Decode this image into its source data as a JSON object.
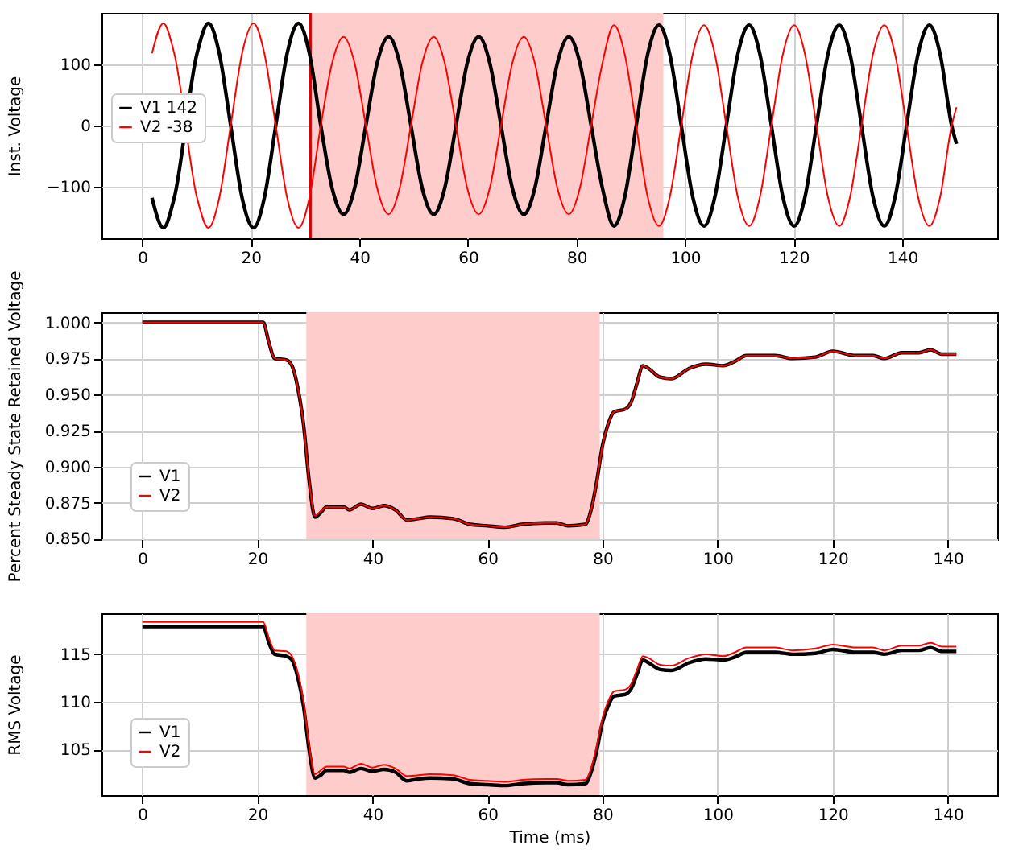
{
  "chart_data": [
    {
      "type": "line",
      "ylabel": "Inst. Voltage",
      "xlim": [
        -7.5,
        157.5
      ],
      "ylim": [
        -184,
        184
      ],
      "xticks": [
        0,
        20,
        40,
        60,
        80,
        100,
        120,
        140
      ],
      "yticks": [
        -100,
        0,
        100
      ],
      "grid": true,
      "legend": "left",
      "x": [
        1.8,
        3.9,
        5.9,
        10.1,
        12.2,
        14.2,
        16.3,
        18.4,
        20.5,
        22.5,
        24.6,
        26.7,
        28.8,
        30.8,
        32.9,
        35.0,
        37.1,
        39.1,
        41.2,
        43.3,
        45.4,
        47.4,
        49.5,
        51.6,
        53.7,
        55.7,
        57.8,
        59.9,
        62.0,
        64.0,
        66.1,
        68.2,
        70.3,
        72.3,
        74.4,
        76.5,
        78.6,
        80.6,
        82.7,
        84.8,
        86.9,
        88.9,
        91.0,
        93.1,
        95.2,
        97.2,
        99.3,
        101.4,
        103.5,
        105.5,
        107.6,
        109.7,
        111.8,
        113.8,
        115.9,
        118.0,
        120.1,
        122.1,
        124.2,
        126.3,
        128.4,
        130.4,
        132.5,
        134.6,
        136.7,
        138.7,
        140.8,
        142.9,
        145.0,
        147.0,
        149.1,
        150
      ],
      "series": [
        {
          "name": "V1 142",
          "color": "#000000",
          "values": [
            -118,
            -167,
            -118,
            118,
            167,
            118,
            0,
            -118,
            -167,
            -118,
            0,
            118,
            167,
            118,
            0,
            -103,
            -145,
            -103,
            0,
            103,
            145,
            103,
            0,
            -103,
            -145,
            -103,
            0,
            103,
            145,
            103,
            0,
            -103,
            -145,
            -103,
            0,
            103,
            145,
            103,
            0,
            -103,
            -164,
            -116,
            0,
            116,
            164,
            116,
            0,
            -116,
            -164,
            -116,
            0,
            116,
            164,
            116,
            0,
            -116,
            -164,
            -116,
            0,
            116,
            164,
            116,
            0,
            -116,
            -164,
            -116,
            0,
            116,
            164,
            116,
            0,
            -30
          ]
        },
        {
          "name": "V2 -38",
          "color": "#ff0000",
          "values": [
            118,
            167,
            118,
            -118,
            -167,
            -118,
            0,
            118,
            167,
            118,
            0,
            -118,
            -167,
            -118,
            0,
            103,
            145,
            103,
            0,
            -103,
            -145,
            -103,
            0,
            103,
            145,
            103,
            0,
            -103,
            -145,
            -103,
            0,
            103,
            145,
            103,
            0,
            -103,
            -145,
            -103,
            0,
            103,
            164,
            116,
            0,
            -116,
            -164,
            -116,
            0,
            116,
            164,
            116,
            0,
            -116,
            -164,
            -116,
            0,
            116,
            164,
            116,
            0,
            -116,
            -164,
            -116,
            0,
            116,
            164,
            116,
            0,
            -116,
            -164,
            -116,
            0,
            30
          ]
        }
      ],
      "bands": [
        {
          "axis": "x",
          "from": 31,
          "to": 96,
          "color": "#ffcccc"
        }
      ],
      "ref_lines": [
        {
          "axis": "x",
          "value": 31,
          "color": "#dd0000"
        }
      ]
    },
    {
      "type": "line",
      "ylabel": "Percent Steady State Retained Voltage",
      "xlim": [
        -7.1,
        148.6
      ],
      "ylim": [
        0.8497,
        1.007
      ],
      "xticks": [
        0,
        20,
        40,
        60,
        80,
        100,
        120,
        140
      ],
      "yticks": [
        {
          "value": 0.85,
          "label": "0.850"
        },
        {
          "value": 0.875,
          "label": "0.875"
        },
        {
          "value": 0.9,
          "label": "0.900"
        },
        {
          "value": 0.925,
          "label": "0.925"
        },
        {
          "value": 0.95,
          "label": "0.950"
        },
        {
          "value": 0.975,
          "label": "0.975"
        },
        {
          "value": 1,
          "label": "1.000"
        }
      ],
      "grid": true,
      "legend": "bottom left",
      "x": [
        0,
        21,
        22,
        23,
        25,
        26,
        27,
        28,
        29,
        30,
        31,
        32,
        35,
        36,
        38,
        40,
        42,
        44,
        46,
        48,
        50,
        54,
        57,
        60,
        63,
        66,
        70,
        72,
        74,
        77,
        78,
        79,
        80,
        81,
        82,
        84,
        85,
        86,
        87,
        88,
        90,
        92,
        95,
        98,
        101,
        103,
        105,
        110,
        113,
        117,
        120,
        124,
        127,
        129,
        132,
        135,
        137,
        139,
        141.5
      ],
      "series": [
        {
          "name": "V1",
          "color": "#000000",
          "values": [
            1,
            1,
            0.986,
            0.975,
            0.974,
            0.97,
            0.955,
            0.93,
            0.89,
            0.865,
            0.868,
            0.872,
            0.872,
            0.87,
            0.874,
            0.871,
            0.873,
            0.87,
            0.863,
            0.864,
            0.865,
            0.864,
            0.86,
            0.859,
            0.858,
            0.86,
            0.861,
            0.861,
            0.859,
            0.86,
            0.87,
            0.89,
            0.915,
            0.93,
            0.938,
            0.94,
            0.945,
            0.958,
            0.97,
            0.968,
            0.962,
            0.961,
            0.968,
            0.971,
            0.97,
            0.973,
            0.977,
            0.977,
            0.975,
            0.976,
            0.98,
            0.977,
            0.977,
            0.975,
            0.979,
            0.979,
            0.981,
            0.978,
            0.978
          ]
        },
        {
          "name": "V2",
          "color": "#ff0000",
          "values": [
            1,
            1,
            0.986,
            0.975,
            0.974,
            0.97,
            0.955,
            0.93,
            0.89,
            0.866,
            0.869,
            0.872,
            0.872,
            0.87,
            0.874,
            0.871,
            0.873,
            0.87,
            0.863,
            0.864,
            0.865,
            0.864,
            0.86,
            0.859,
            0.858,
            0.86,
            0.861,
            0.861,
            0.859,
            0.86,
            0.87,
            0.89,
            0.915,
            0.93,
            0.938,
            0.94,
            0.945,
            0.958,
            0.97,
            0.968,
            0.962,
            0.961,
            0.968,
            0.971,
            0.97,
            0.973,
            0.977,
            0.977,
            0.975,
            0.976,
            0.98,
            0.977,
            0.977,
            0.975,
            0.979,
            0.979,
            0.981,
            0.978,
            0.978
          ]
        }
      ],
      "bands": [
        {
          "axis": "x",
          "from": 28.5,
          "to": 79.5,
          "color": "#ffcccc"
        }
      ]
    },
    {
      "type": "line",
      "xlabel": "Time (ms)",
      "ylabel": "RMS Voltage",
      "xlim": [
        -7.1,
        148.6
      ],
      "ylim": [
        100.2,
        119.3
      ],
      "xticks": [
        0,
        20,
        40,
        60,
        80,
        100,
        120,
        140
      ],
      "yticks": [
        105,
        110,
        115
      ],
      "grid": true,
      "legend": "bottom left",
      "x": [
        0,
        21,
        22,
        23,
        25,
        26,
        27,
        28,
        29,
        30,
        31,
        32,
        35,
        36,
        38,
        40,
        42,
        44,
        46,
        48,
        50,
        54,
        57,
        60,
        63,
        66,
        70,
        72,
        74,
        77,
        78,
        79,
        80,
        81,
        82,
        84,
        85,
        86,
        87,
        88,
        90,
        92,
        95,
        98,
        101,
        103,
        105,
        110,
        113,
        117,
        120,
        124,
        127,
        129,
        132,
        135,
        137,
        139,
        141.5
      ],
      "series": [
        {
          "name": "V1",
          "color": "#000000",
          "values": [
            117.9,
            117.9,
            116.2,
            115.0,
            114.8,
            114.4,
            112.6,
            109.6,
            104.9,
            102.0,
            102.3,
            102.8,
            102.8,
            102.6,
            103.0,
            102.7,
            102.9,
            102.6,
            101.7,
            101.9,
            102.0,
            101.9,
            101.4,
            101.3,
            101.2,
            101.4,
            101.5,
            101.5,
            101.3,
            101.4,
            102.6,
            104.9,
            107.9,
            109.6,
            110.6,
            110.8,
            111.4,
            112.9,
            114.4,
            114.1,
            113.4,
            113.3,
            114.1,
            114.5,
            114.4,
            114.7,
            115.2,
            115.2,
            115.0,
            115.1,
            115.5,
            115.2,
            115.2,
            115.0,
            115.4,
            115.4,
            115.7,
            115.3,
            115.3
          ]
        },
        {
          "name": "V2",
          "color": "#ff0000",
          "values": [
            118.4,
            118.4,
            116.7,
            115.4,
            115.3,
            114.8,
            113.1,
            110.1,
            105.4,
            102.4,
            102.8,
            103.2,
            103.2,
            103.0,
            103.5,
            103.1,
            103.4,
            103.0,
            102.2,
            102.3,
            102.4,
            102.3,
            101.8,
            101.7,
            101.6,
            101.8,
            101.9,
            101.9,
            101.7,
            101.8,
            103.0,
            105.4,
            108.3,
            110.1,
            111.1,
            111.3,
            111.9,
            113.4,
            114.8,
            114.6,
            113.9,
            113.8,
            114.6,
            115.0,
            114.8,
            115.2,
            115.7,
            115.7,
            115.4,
            115.6,
            116.0,
            115.7,
            115.7,
            115.4,
            115.9,
            115.9,
            116.2,
            115.8,
            115.8
          ]
        }
      ],
      "bands": [
        {
          "axis": "x",
          "from": 28.5,
          "to": 79.5,
          "color": "#ffcccc"
        }
      ]
    }
  ]
}
